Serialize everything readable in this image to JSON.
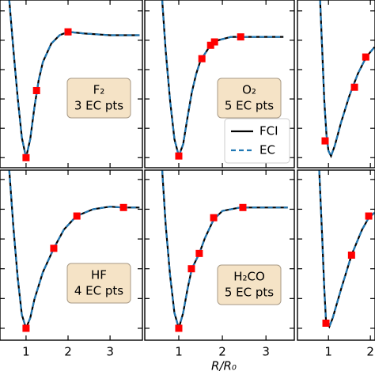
{
  "xlabel": "R/R₀",
  "chart_data": [
    {
      "type": "line",
      "xlim": [
        0.38,
        3.77
      ],
      "ylim": [
        0,
        1
      ],
      "xticks": [
        1,
        2,
        3
      ],
      "show_xtick_labels": false,
      "yticks": [
        0.06,
        0.235,
        0.41,
        0.585,
        0.76,
        0.935
      ],
      "label": [
        "F₂",
        "3 EC pts"
      ],
      "x": [
        0.6,
        0.7,
        0.8,
        0.9,
        1.0,
        1.1,
        1.2,
        1.3,
        1.4,
        1.6,
        1.8,
        2.0,
        2.4,
        3.0,
        3.7
      ],
      "series": [
        {
          "color": "#000000",
          "style": "solid",
          "values": [
            1.0,
            0.7,
            0.42,
            0.18,
            0.06,
            0.17,
            0.36,
            0.52,
            0.63,
            0.74,
            0.79,
            0.81,
            0.8,
            0.79,
            0.79
          ]
        },
        {
          "color": "#1f77b4",
          "style": "dashed",
          "values": [
            1.0,
            0.7,
            0.42,
            0.18,
            0.06,
            0.17,
            0.36,
            0.52,
            0.63,
            0.74,
            0.79,
            0.81,
            0.8,
            0.79,
            0.79
          ]
        }
      ],
      "points": {
        "color": "#ff0000",
        "x": [
          1.0,
          1.25,
          2.0
        ],
        "values": [
          0.06,
          0.46,
          0.81
        ]
      }
    },
    {
      "type": "line",
      "xlim": [
        0.22,
        3.65
      ],
      "ylim": [
        0,
        1
      ],
      "xticks": [
        1,
        2,
        3
      ],
      "show_xtick_labels": false,
      "yticks": [
        0.06,
        0.235,
        0.41,
        0.585,
        0.76,
        0.935
      ],
      "label": [
        "O₂",
        "5 EC pts"
      ],
      "legend": "lower right",
      "x": [
        0.62,
        0.7,
        0.8,
        0.9,
        1.0,
        1.1,
        1.2,
        1.3,
        1.4,
        1.5,
        1.7,
        1.9,
        2.2,
        2.6,
        3.0,
        3.4
      ],
      "series": [
        {
          "name": "FCI",
          "color": "#000000",
          "style": "solid",
          "values": [
            1.0,
            0.7,
            0.4,
            0.17,
            0.07,
            0.14,
            0.3,
            0.45,
            0.56,
            0.64,
            0.72,
            0.76,
            0.78,
            0.78,
            0.78,
            0.78
          ]
        },
        {
          "name": "EC",
          "color": "#1f77b4",
          "style": "dashed",
          "values": [
            1.0,
            0.7,
            0.4,
            0.17,
            0.07,
            0.14,
            0.3,
            0.45,
            0.56,
            0.64,
            0.72,
            0.76,
            0.78,
            0.78,
            0.78,
            0.78
          ]
        }
      ],
      "points": {
        "color": "#ff0000",
        "x": [
          1.0,
          1.53,
          1.73,
          1.82,
          2.42
        ],
        "values": [
          0.07,
          0.65,
          0.73,
          0.75,
          0.78
        ]
      }
    },
    {
      "type": "line",
      "xlim": [
        0.26,
        2.11
      ],
      "ylim": [
        0,
        1
      ],
      "xticks": [
        1,
        2
      ],
      "show_xtick_labels": false,
      "yticks": [
        0.06,
        0.235,
        0.41,
        0.585,
        0.76,
        0.935
      ],
      "x": [
        0.8,
        0.85,
        0.9,
        0.95,
        1.0,
        1.06,
        1.15,
        1.3,
        1.5,
        1.7,
        1.9,
        2.1
      ],
      "series": [
        {
          "color": "#000000",
          "style": "solid",
          "values": [
            1.0,
            0.7,
            0.4,
            0.2,
            0.1,
            0.07,
            0.13,
            0.27,
            0.43,
            0.56,
            0.66,
            0.72
          ]
        },
        {
          "color": "#1f77b4",
          "style": "dashed",
          "values": [
            1.0,
            0.7,
            0.4,
            0.2,
            0.1,
            0.07,
            0.13,
            0.27,
            0.43,
            0.56,
            0.66,
            0.72
          ]
        }
      ],
      "points": {
        "color": "#ff0000",
        "x": [
          0.92,
          1.62,
          1.89
        ],
        "values": [
          0.16,
          0.48,
          0.66
        ]
      }
    },
    {
      "type": "line",
      "xlim": [
        0.38,
        3.77
      ],
      "ylim": [
        0,
        1
      ],
      "xticks": [
        1,
        2,
        3
      ],
      "show_xtick_labels": true,
      "yticks": [
        0.07,
        0.245,
        0.42,
        0.595,
        0.77,
        0.945
      ],
      "label": [
        "HF",
        "4 EC pts"
      ],
      "x": [
        0.6,
        0.7,
        0.8,
        0.9,
        1.0,
        1.1,
        1.2,
        1.4,
        1.66,
        1.9,
        2.2,
        2.6,
        3.0,
        3.3,
        3.7
      ],
      "series": [
        {
          "color": "#000000",
          "style": "solid",
          "values": [
            1.0,
            0.66,
            0.37,
            0.15,
            0.07,
            0.13,
            0.24,
            0.4,
            0.54,
            0.65,
            0.73,
            0.77,
            0.785,
            0.78,
            0.78
          ]
        },
        {
          "color": "#1f77b4",
          "style": "dashed",
          "values": [
            1.0,
            0.66,
            0.37,
            0.15,
            0.07,
            0.13,
            0.24,
            0.4,
            0.54,
            0.65,
            0.73,
            0.77,
            0.785,
            0.78,
            0.78
          ]
        }
      ],
      "points": {
        "color": "#ff0000",
        "x": [
          1.0,
          1.66,
          2.21,
          3.32
        ],
        "values": [
          0.07,
          0.54,
          0.73,
          0.78
        ]
      }
    },
    {
      "type": "line",
      "xlim": [
        0.22,
        3.65
      ],
      "ylim": [
        0,
        1
      ],
      "xticks": [
        1,
        2,
        3
      ],
      "show_xtick_labels": true,
      "yticks": [
        0.07,
        0.245,
        0.42,
        0.595,
        0.77,
        0.945
      ],
      "label": [
        "H₂CO",
        "5 EC pts"
      ],
      "x": [
        0.62,
        0.7,
        0.8,
        0.9,
        1.0,
        1.1,
        1.2,
        1.3,
        1.47,
        1.6,
        1.8,
        2.0,
        2.4,
        3.0,
        3.5
      ],
      "series": [
        {
          "color": "#000000",
          "style": "solid",
          "values": [
            1.0,
            0.68,
            0.38,
            0.16,
            0.07,
            0.16,
            0.3,
            0.42,
            0.51,
            0.6,
            0.71,
            0.76,
            0.78,
            0.78,
            0.78
          ]
        },
        {
          "color": "#1f77b4",
          "style": "dashed",
          "values": [
            1.0,
            0.68,
            0.38,
            0.16,
            0.07,
            0.16,
            0.3,
            0.42,
            0.51,
            0.6,
            0.71,
            0.76,
            0.78,
            0.78,
            0.78
          ]
        }
      ],
      "points": {
        "color": "#ff0000",
        "x": [
          1.0,
          1.29,
          1.47,
          1.8,
          2.47
        ],
        "values": [
          0.07,
          0.42,
          0.51,
          0.72,
          0.78
        ]
      }
    },
    {
      "type": "line",
      "xlim": [
        0.26,
        2.11
      ],
      "ylim": [
        0,
        1
      ],
      "xticks": [
        1,
        2
      ],
      "show_xtick_labels": true,
      "yticks": [
        0.07,
        0.245,
        0.42,
        0.595,
        0.77,
        0.945
      ],
      "x": [
        0.78,
        0.85,
        0.9,
        0.94,
        1.02,
        1.1,
        1.3,
        1.55,
        1.8,
        1.96,
        2.1
      ],
      "series": [
        {
          "color": "#000000",
          "style": "solid",
          "values": [
            1.0,
            0.6,
            0.3,
            0.12,
            0.08,
            0.13,
            0.3,
            0.5,
            0.65,
            0.72,
            0.75
          ]
        },
        {
          "color": "#1f77b4",
          "style": "dashed",
          "values": [
            1.0,
            0.6,
            0.3,
            0.12,
            0.08,
            0.13,
            0.3,
            0.5,
            0.65,
            0.72,
            0.75
          ]
        }
      ],
      "points": {
        "color": "#ff0000",
        "x": [
          0.94,
          1.55,
          1.96
        ],
        "values": [
          0.1,
          0.5,
          0.73
        ]
      }
    }
  ]
}
